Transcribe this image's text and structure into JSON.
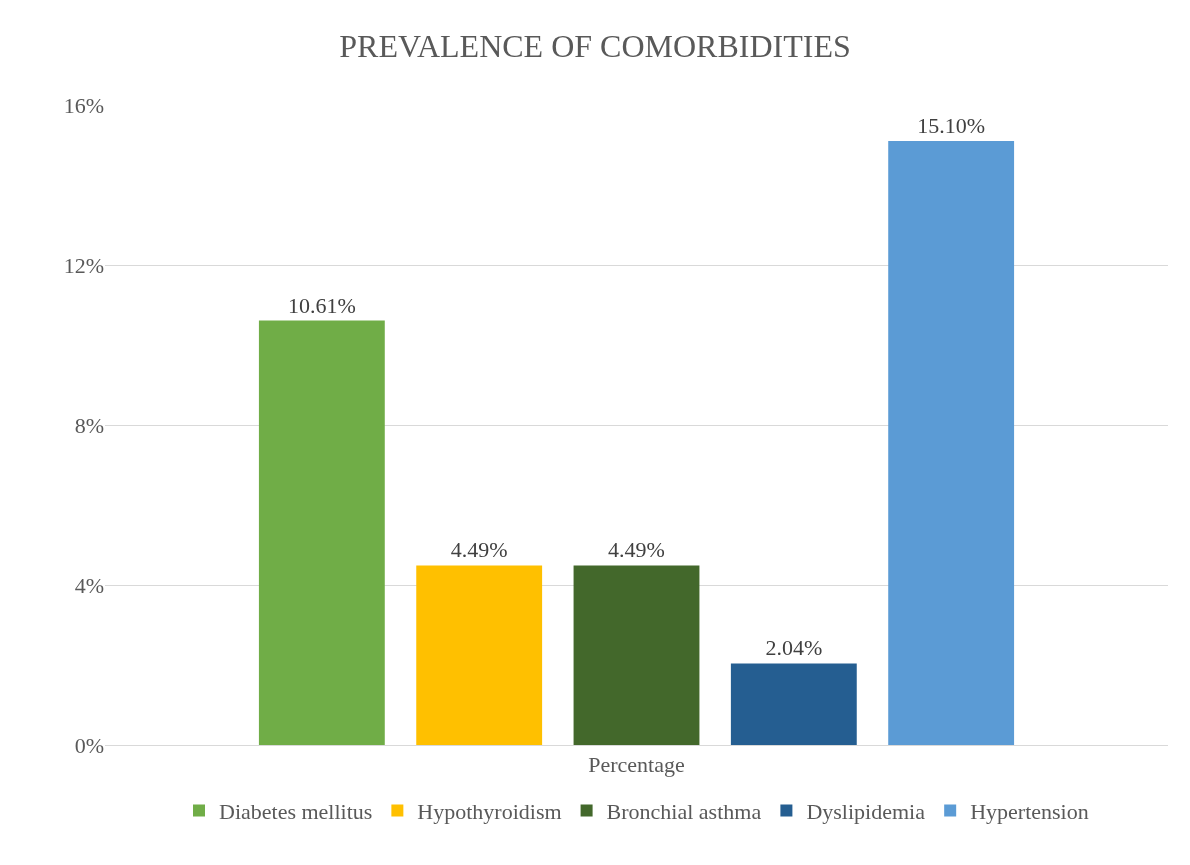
{
  "chart_data": {
    "type": "bar",
    "title": "PREVALENCE OF COMORBIDITIES",
    "categories": [
      "Percentage"
    ],
    "series": [
      {
        "name": "Diabetes mellitus",
        "color": "#70ad47",
        "values": [
          10.61
        ],
        "value_labels": [
          "10.61%"
        ]
      },
      {
        "name": "Hypothyroidism",
        "color": "#ffc000",
        "values": [
          4.49
        ],
        "value_labels": [
          "4.49%"
        ]
      },
      {
        "name": "Bronchial asthma",
        "color": "#43682b",
        "values": [
          4.49
        ],
        "value_labels": [
          "4.49%"
        ]
      },
      {
        "name": "Dyslipidemia",
        "color": "#255e91",
        "values": [
          2.04
        ],
        "value_labels": [
          "2.04%"
        ]
      },
      {
        "name": "Hypertension",
        "color": "#5b9bd5",
        "values": [
          15.1
        ],
        "value_labels": [
          "15.10%"
        ]
      }
    ],
    "ylim": [
      0,
      16
    ],
    "yticks": [
      {
        "value": 0,
        "label": "0%"
      },
      {
        "value": 4,
        "label": "4%"
      },
      {
        "value": 8,
        "label": "8%"
      },
      {
        "value": 12,
        "label": "12%"
      },
      {
        "value": 16,
        "label": "16%"
      }
    ],
    "grid": "y",
    "legend": "bottom"
  }
}
